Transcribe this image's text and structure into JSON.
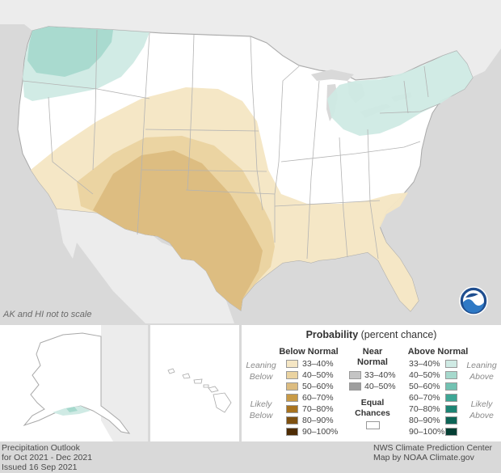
{
  "map": {
    "scale_note": "AK and HI not to scale",
    "colors": {
      "ocean": "#d9d9d9",
      "land": "#ffffff",
      "foreign_land": "#ececec",
      "border": "#a9a9a9",
      "below_33_40": "#f5e6c4",
      "below_40_50": "#ead3a1",
      "below_50_60": "#dcbc80",
      "above_33_40": "#cfeae4",
      "above_40_50": "#a6d9cd"
    },
    "logo": "noaa-logo"
  },
  "legend": {
    "title_bold": "Probability",
    "title_rest": " (percent chance)",
    "below_header": "Below Normal",
    "near_header_1": "Near",
    "near_header_2": "Normal",
    "above_header": "Above Normal",
    "leaning_below_1": "Leaning",
    "leaning_below_2": "Below",
    "likely_below_1": "Likely",
    "likely_below_2": "Below",
    "leaning_above_1": "Leaning",
    "leaning_above_2": "Above",
    "likely_above_1": "Likely",
    "likely_above_2": "Above",
    "below_rows": [
      {
        "label": "33–40%",
        "color": "#f5e6c4"
      },
      {
        "label": "40–50%",
        "color": "#ead3a1"
      },
      {
        "label": "50–60%",
        "color": "#dcbc80"
      },
      {
        "label": "60–70%",
        "color": "#c89a46"
      },
      {
        "label": "70–80%",
        "color": "#a8731f"
      },
      {
        "label": "80–90%",
        "color": "#7e5010"
      },
      {
        "label": "90–100%",
        "color": "#4e2c04"
      }
    ],
    "near_rows": [
      {
        "label": "33–40%",
        "color": "#c4c4c4"
      },
      {
        "label": "40–50%",
        "color": "#9e9e9e"
      }
    ],
    "above_rows": [
      {
        "label": "33–40%",
        "color": "#cfeae4"
      },
      {
        "label": "40–50%",
        "color": "#a6d9cd"
      },
      {
        "label": "50–60%",
        "color": "#72c2b2"
      },
      {
        "label": "60–70%",
        "color": "#3ea695"
      },
      {
        "label": "70–80%",
        "color": "#1d8474"
      },
      {
        "label": "80–90%",
        "color": "#0d6456"
      },
      {
        "label": "90–100%",
        "color": "#043f34"
      }
    ],
    "equal_1": "Equal",
    "equal_2": "Chances"
  },
  "footer": {
    "left_1": "Precipitation Outlook",
    "left_2": "for Oct 2021 - Dec 2021",
    "left_3": "Issued 16 Sep 2021",
    "right_1": "NWS Climate Prediction Center",
    "right_2": "Map by NOAA Climate.gov"
  }
}
